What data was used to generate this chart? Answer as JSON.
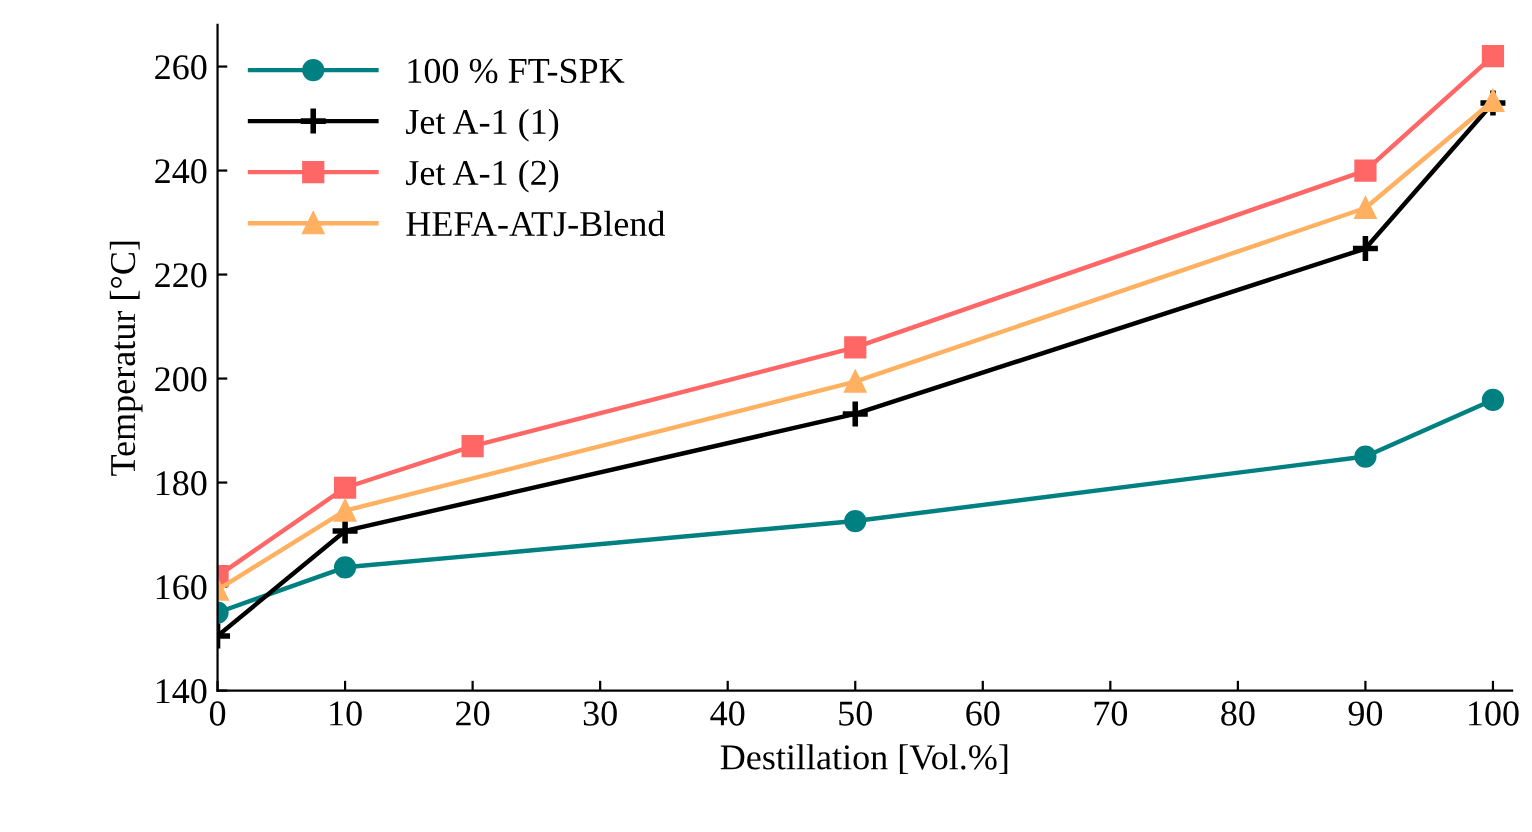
{
  "chart_data": {
    "type": "line",
    "xlabel": "Destillation [Vol.%]",
    "ylabel": "Temperatur [°C]",
    "xlim": [
      0,
      101.5
    ],
    "ylim": [
      140,
      268
    ],
    "xticks": [
      0,
      10,
      20,
      30,
      40,
      50,
      60,
      70,
      80,
      90,
      100
    ],
    "yticks": [
      140,
      160,
      180,
      200,
      220,
      240,
      260
    ],
    "grid": false,
    "legend": "top left",
    "series": [
      {
        "name": "100 % FT-SPK",
        "color": "#008080",
        "marker": "circle",
        "x": [
          0,
          10,
          50,
          90,
          100
        ],
        "values": [
          155,
          163.7,
          172.6,
          185,
          195.9
        ]
      },
      {
        "name": "Jet A-1 (1)",
        "color": "#000000",
        "marker": "cross",
        "x": [
          0,
          10,
          50,
          90,
          100
        ],
        "values": [
          150.5,
          170.7,
          193.2,
          225,
          253
        ]
      },
      {
        "name": "Jet A-1 (2)",
        "color": "#ff6666",
        "marker": "square",
        "x": [
          0,
          10,
          20,
          50,
          90,
          100
        ],
        "values": [
          162,
          179,
          187,
          206,
          240,
          262
        ]
      },
      {
        "name": "HEFA-ATJ-Blend",
        "color": "#ffb060",
        "marker": "triangle",
        "x": [
          0,
          10,
          50,
          90,
          100
        ],
        "values": [
          159.4,
          174.6,
          199.4,
          232.8,
          253.4
        ]
      }
    ]
  }
}
